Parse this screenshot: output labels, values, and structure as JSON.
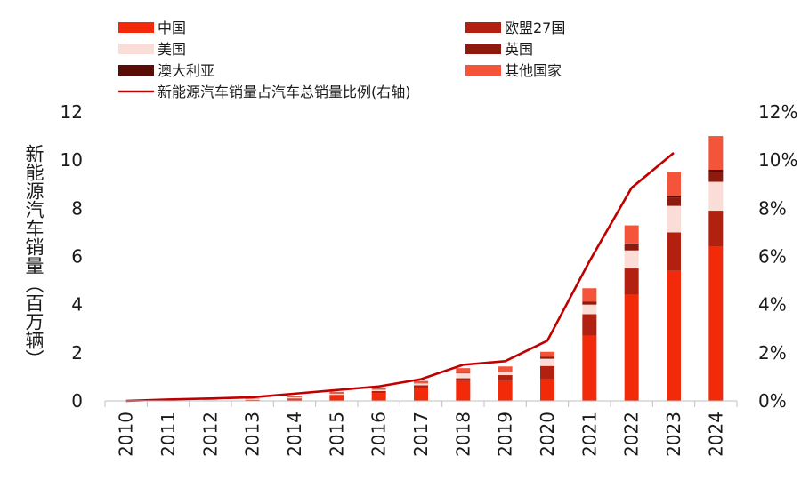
{
  "chart_data": {
    "type": "bar",
    "stacked": true,
    "categories": [
      "2010",
      "2011",
      "2012",
      "2013",
      "2014",
      "2015",
      "2016",
      "2017",
      "2018",
      "2019",
      "2020",
      "2021",
      "2022",
      "2023",
      "2024"
    ],
    "series": [
      {
        "name": "中国",
        "color": "#F22A0A",
        "values": [
          0.0,
          0.01,
          0.01,
          0.02,
          0.07,
          0.2,
          0.33,
          0.55,
          0.82,
          0.82,
          0.9,
          2.7,
          4.4,
          5.4,
          6.4
        ]
      },
      {
        "name": "欧盟27国",
        "color": "#B22010",
        "values": [
          0.0,
          0.0,
          0.01,
          0.02,
          0.03,
          0.05,
          0.08,
          0.1,
          0.12,
          0.25,
          0.55,
          0.9,
          1.1,
          1.6,
          1.5
        ]
      },
      {
        "name": "美国",
        "color": "#FADDD6",
        "values": [
          0.0,
          0.01,
          0.03,
          0.04,
          0.05,
          0.05,
          0.06,
          0.08,
          0.2,
          0.13,
          0.3,
          0.4,
          0.75,
          1.1,
          1.2
        ]
      },
      {
        "name": "英国",
        "color": "#8E1A0E",
        "values": [
          0.0,
          0.0,
          0.0,
          0.0,
          0.01,
          0.01,
          0.01,
          0.02,
          0.02,
          0.03,
          0.08,
          0.12,
          0.25,
          0.35,
          0.4
        ]
      },
      {
        "name": "澳大利亚",
        "color": "#5A0C06",
        "values": [
          0.0,
          0.0,
          0.0,
          0.0,
          0.0,
          0.0,
          0.0,
          0.0,
          0.0,
          0.0,
          0.01,
          0.01,
          0.04,
          0.06,
          0.1
        ]
      },
      {
        "name": "其他国家",
        "color": "#F4543A",
        "values": [
          0.0,
          0.0,
          0.01,
          0.02,
          0.04,
          0.07,
          0.06,
          0.08,
          0.2,
          0.2,
          0.2,
          0.55,
          0.75,
          1.0,
          1.4
        ]
      }
    ],
    "line_series": {
      "name": "新能源汽车销量占汽车总销量比例(右轴)",
      "color": "#C00000",
      "axis": "right",
      "values": [
        0.0,
        0.06,
        0.1,
        0.15,
        0.3,
        0.45,
        0.6,
        0.9,
        1.5,
        1.65,
        2.5,
        5.8,
        8.85,
        10.3,
        null
      ]
    },
    "ylabel": "新能源汽车销量（百万辆）",
    "ylim": [
      0,
      12
    ],
    "yticks": [
      "0",
      "2",
      "4",
      "6",
      "8",
      "10",
      "12"
    ],
    "y2lim": [
      0,
      12
    ],
    "y2ticks": [
      "0%",
      "2%",
      "4%",
      "6%",
      "8%",
      "10%",
      "12%"
    ],
    "legend_position": "top",
    "grid": false
  }
}
